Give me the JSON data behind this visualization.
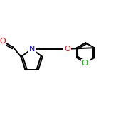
{
  "background_color": "#ffffff",
  "bond_color": "#000000",
  "bond_width": 1.4,
  "atom_colors": {
    "O": "#ff0000",
    "N": "#0000ff",
    "Cl": "#00aa00",
    "C": "#000000"
  },
  "font_size": 7.5,
  "figsize": [
    1.8,
    1.8
  ],
  "dpi": 100,
  "xlim": [
    0,
    10
  ],
  "ylim": [
    0,
    10
  ]
}
